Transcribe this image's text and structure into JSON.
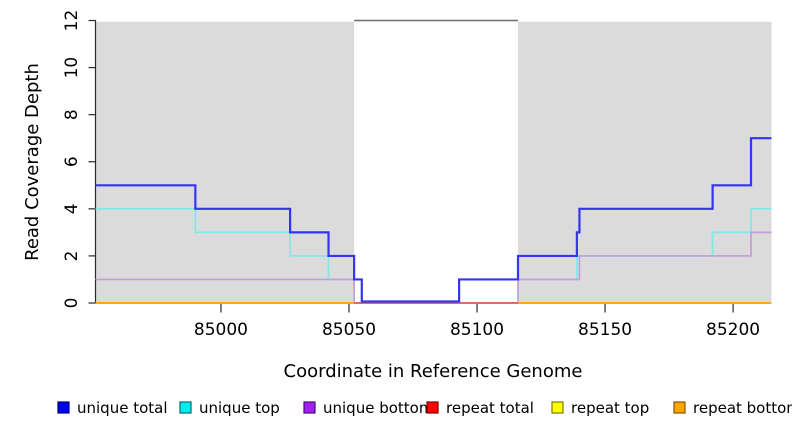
{
  "chart_data": {
    "type": "line",
    "subtype": "step",
    "title": "",
    "xlabel": "Coordinate in Reference Genome",
    "ylabel": "Read Coverage Depth",
    "xlim": [
      84951,
      85215
    ],
    "ylim": [
      0,
      12
    ],
    "xticks": [
      85000,
      85050,
      85100,
      85150,
      85200
    ],
    "yticks": [
      0,
      2,
      4,
      6,
      8,
      10,
      12
    ],
    "grid": "off",
    "shade_color": "#dbdbdb",
    "shaded_regions": [
      [
        84951,
        85052
      ],
      [
        85116,
        85215
      ]
    ],
    "gap_region": {
      "x0": 85052,
      "x1": 85116,
      "top_border_color": "#6e6e6e",
      "top_border_y": 12
    },
    "note": "Step plot of read coverage depth. Gray bands flank a white repeat gap (85052-85116). 'unique total' dips to 0 inside the gap and is rendered a hair above the baseline over the red repeat-total line.",
    "series": [
      {
        "name": "unique top",
        "line_color": "#7fe9e9",
        "width": 1.7,
        "lift_zero": false,
        "segments": [
          {
            "steps": [
              [
                84951,
                4
              ],
              [
                84990,
                3
              ],
              [
                85027,
                2
              ],
              [
                85042,
                1
              ],
              [
                85055,
                0
              ],
              [
                85093,
                1
              ],
              [
                85139,
                2
              ],
              [
                85192,
                3
              ],
              [
                85207,
                4
              ]
            ],
            "xend": 85215
          }
        ]
      },
      {
        "name": "unique bottom",
        "line_color": "#c49dda",
        "width": 1.7,
        "lift_zero": false,
        "segments": [
          {
            "steps": [
              [
                84951,
                1
              ],
              [
                85052,
                0
              ],
              [
                85116,
                1
              ],
              [
                85140,
                2
              ],
              [
                85207,
                3
              ]
            ],
            "xend": 85215
          }
        ]
      },
      {
        "name": "repeat top",
        "line_color": "#f5e94a",
        "width": 1.7,
        "lift_zero": false,
        "segments": [
          {
            "steps": [
              [
                84951,
                0
              ]
            ],
            "xend": 85215
          }
        ]
      },
      {
        "name": "repeat total",
        "line_color": "#e05c5c",
        "width": 1.7,
        "lift_zero": false,
        "segments": [
          {
            "steps": [
              [
                84951,
                0
              ]
            ],
            "xend": 85215
          }
        ]
      },
      {
        "name": "repeat bottom",
        "line_color": "#ffa41e",
        "width": 2,
        "lift_zero": false,
        "segments": [
          {
            "steps": [
              [
                84951,
                0
              ]
            ],
            "xend": 85052
          },
          {
            "steps": [
              [
                85116,
                0
              ]
            ],
            "xend": 85215
          }
        ]
      },
      {
        "name": "unique total",
        "line_color": "#3434f2",
        "width": 2.2,
        "lift_zero": true,
        "segments": [
          {
            "steps": [
              [
                84951,
                5
              ],
              [
                84990,
                4
              ],
              [
                85027,
                3
              ],
              [
                85042,
                2
              ],
              [
                85052,
                1
              ],
              [
                85055,
                0
              ],
              [
                85093,
                1
              ],
              [
                85116,
                2
              ],
              [
                85139,
                3
              ],
              [
                85140,
                4
              ],
              [
                85192,
                5
              ],
              [
                85207,
                7
              ]
            ],
            "xend": 85215
          }
        ]
      }
    ],
    "legend": {
      "position": "bottom",
      "entries": [
        {
          "label": "unique total",
          "color": "#0000f0",
          "border": "#000080"
        },
        {
          "label": "unique top",
          "color": "#00eded",
          "border": "#006a7a"
        },
        {
          "label": "unique bottom",
          "color": "#a020f0",
          "border": "#4b0a78"
        },
        {
          "label": "repeat total",
          "color": "#ff0000",
          "border": "#7a0000"
        },
        {
          "label": "repeat top",
          "color": "#ffff00",
          "border": "#7a7a00"
        },
        {
          "label": "repeat bottom",
          "color": "#ffa500",
          "border": "#8a5400"
        }
      ]
    }
  }
}
